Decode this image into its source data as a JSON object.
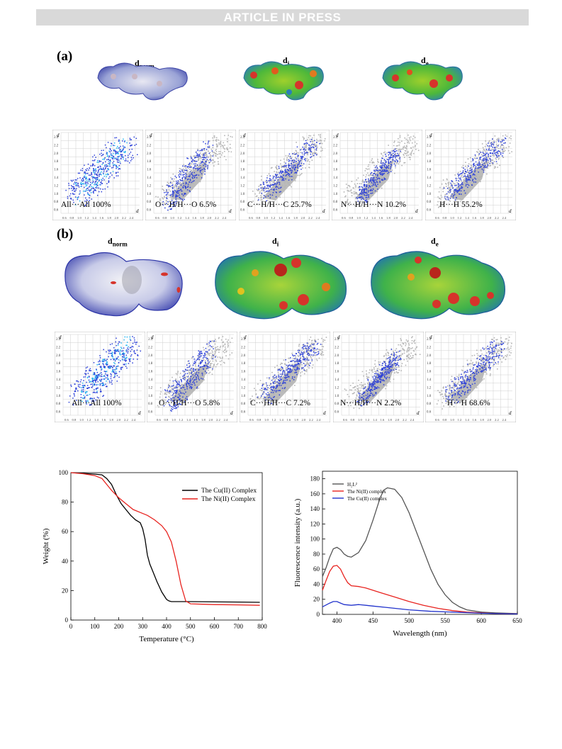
{
  "header": {
    "banner": "ARTICLE IN PRESS"
  },
  "panel_a": {
    "label": "(a)",
    "surfaces": [
      {
        "main": "d",
        "sub": "norm"
      },
      {
        "main": "d",
        "sub": "i"
      },
      {
        "main": "d",
        "sub": "e"
      }
    ],
    "fingerprints": [
      "All···All 100%",
      "O···H/H···O 6.5%",
      "C···H/H···C 25.7%",
      "N···H/H···N 10.2%",
      "H···H 55.2%"
    ]
  },
  "panel_b": {
    "label": "(b)",
    "surfaces": [
      {
        "main": "d",
        "sub": "norm"
      },
      {
        "main": "d",
        "sub": "i"
      },
      {
        "main": "d",
        "sub": "e"
      }
    ],
    "fingerprints": [
      "All···All 100%",
      "O···H/H···O 5.8%",
      "C···H/H···C 7.2%",
      "N···H/H···N 2.2%",
      "H···H 68.6%"
    ]
  },
  "fingerprint_axis": {
    "ticks": [
      "0.6",
      "0.8",
      "1.0",
      "1.2",
      "1.4",
      "1.6",
      "1.8",
      "2.0",
      "2.2",
      "2.4"
    ],
    "y_label": "d",
    "x_label": "d"
  },
  "chart_data": [
    {
      "type": "line",
      "xlabel": "Temperature (°C)",
      "ylabel": "Weight (%)",
      "xlim": [
        0,
        800
      ],
      "ylim": [
        0,
        100
      ],
      "xticks": [
        0,
        100,
        200,
        300,
        400,
        500,
        600,
        700,
        800
      ],
      "yticks": [
        0,
        20,
        40,
        60,
        80,
        100
      ],
      "legend": "top-right",
      "series": [
        {
          "name": "The Cu(II) Complex",
          "color": "#000000",
          "x": [
            0,
            50,
            100,
            130,
            150,
            170,
            190,
            210,
            230,
            250,
            270,
            290,
            300,
            310,
            320,
            330,
            340,
            360,
            380,
            400,
            410,
            420,
            450,
            500,
            600,
            700,
            790
          ],
          "y": [
            100,
            99.5,
            99,
            98.5,
            96,
            92,
            85,
            79,
            75,
            71,
            68,
            66,
            62,
            55,
            44,
            38,
            34,
            26,
            19,
            14,
            13,
            12.5,
            12.5,
            12.5,
            12.3,
            12.2,
            12
          ]
        },
        {
          "name": "The Ni(II) Complex",
          "color": "#e8231f",
          "x": [
            0,
            50,
            100,
            130,
            150,
            170,
            200,
            230,
            260,
            290,
            320,
            350,
            380,
            400,
            420,
            440,
            460,
            480,
            500,
            550,
            600,
            700,
            790
          ],
          "y": [
            100,
            99.3,
            98,
            96,
            92,
            88,
            83,
            79,
            75,
            73,
            71,
            68,
            64,
            60,
            53,
            40,
            24,
            13,
            11,
            10.7,
            10.5,
            10.3,
            10
          ]
        }
      ]
    },
    {
      "type": "line",
      "xlabel": "Wavelength (nm)",
      "ylabel": "Fluorescence intensity (a.u.)",
      "xlim": [
        380,
        650
      ],
      "ylim": [
        0,
        190
      ],
      "xticks": [
        400,
        450,
        500,
        550,
        600,
        650
      ],
      "yticks": [
        0,
        20,
        40,
        60,
        80,
        100,
        120,
        140,
        160,
        180
      ],
      "legend": "top-left",
      "series": [
        {
          "name": "H₂L²",
          "color": "#555555",
          "x": [
            380,
            385,
            390,
            395,
            400,
            405,
            410,
            415,
            420,
            430,
            440,
            450,
            460,
            465,
            470,
            480,
            490,
            500,
            510,
            520,
            530,
            540,
            550,
            560,
            570,
            580,
            600,
            620,
            650
          ],
          "y": [
            50,
            62,
            76,
            87,
            89,
            86,
            80,
            77,
            76,
            82,
            98,
            125,
            155,
            165,
            168,
            166,
            155,
            135,
            110,
            85,
            60,
            40,
            26,
            16,
            10,
            6,
            3,
            2,
            1
          ]
        },
        {
          "name": "The Ni(II) complex",
          "color": "#e8231f",
          "x": [
            380,
            385,
            390,
            395,
            400,
            405,
            410,
            415,
            420,
            430,
            440,
            450,
            460,
            480,
            500,
            520,
            540,
            560,
            580,
            600,
            620,
            650
          ],
          "y": [
            32,
            45,
            57,
            64,
            65,
            60,
            50,
            42,
            38,
            37,
            35,
            32,
            29,
            23,
            17,
            12,
            8,
            5,
            3,
            2,
            1,
            0.5
          ]
        },
        {
          "name": "The Cu(II) complex",
          "color": "#2233cc",
          "x": [
            380,
            390,
            395,
            400,
            405,
            410,
            420,
            430,
            440,
            450,
            470,
            500,
            530,
            560,
            600,
            650
          ],
          "y": [
            10,
            15,
            17,
            17,
            15,
            13,
            12,
            13,
            12,
            11,
            9,
            6,
            4,
            3,
            1.5,
            0.5
          ]
        }
      ]
    }
  ]
}
